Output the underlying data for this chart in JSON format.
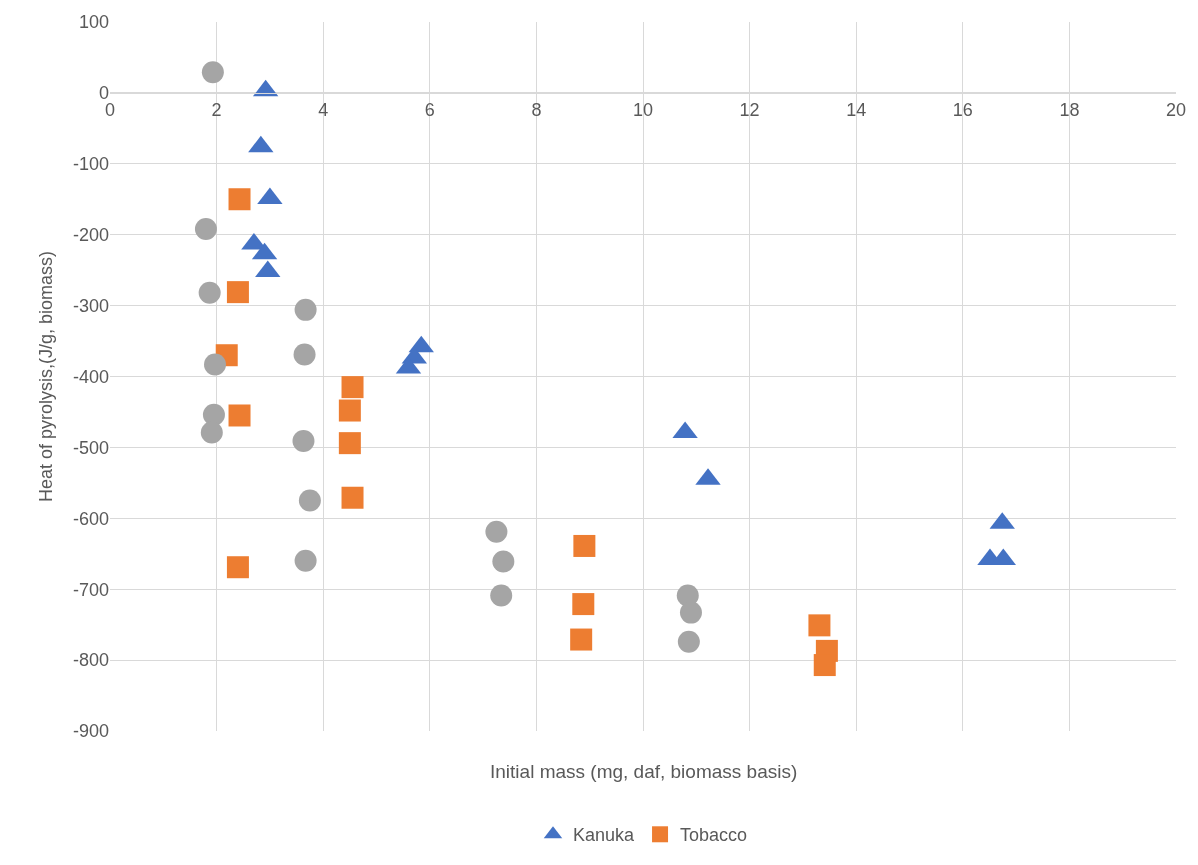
{
  "chart_data": {
    "type": "scatter",
    "xlabel": "Initial mass (mg, daf, biomass basis)",
    "ylabel": "Heat of pyrolysis,(J/g, biomass)",
    "xlim": [
      0,
      20
    ],
    "xticks": [
      0,
      2,
      4,
      6,
      8,
      10,
      12,
      14,
      16,
      18,
      20
    ],
    "ylim": [
      -900,
      100
    ],
    "yticks": [
      -900,
      -800,
      -700,
      -600,
      -500,
      -400,
      -300,
      -200,
      -100,
      0,
      100
    ],
    "grid": true,
    "legend": "bottom",
    "series": [
      {
        "name": "Kanuka",
        "color": "#4472c4",
        "marker": "triangle",
        "x": [
          2.92,
          2.83,
          3.0,
          2.7,
          2.9,
          2.96,
          5.84,
          5.71,
          5.6,
          10.79,
          11.22,
          16.74,
          16.51,
          16.76
        ],
        "values": [
          3,
          -76,
          -149,
          -213,
          -227,
          -252,
          -358,
          -374,
          -388,
          -479,
          -545,
          -607,
          -658,
          -658
        ]
      },
      {
        "name": "Tobacco",
        "color": "#ed7d31",
        "marker": "square",
        "x": [
          2.43,
          2.4,
          2.19,
          2.43,
          4.55,
          4.5,
          4.5,
          4.55,
          2.4,
          8.9,
          8.88,
          8.84,
          13.31,
          13.45,
          13.41
        ],
        "values": [
          -150,
          -281,
          -370,
          -455,
          -415,
          -448,
          -494,
          -571,
          -669,
          -639,
          -721,
          -771,
          -751,
          -787,
          -807
        ]
      },
      {
        "color": "#a5a5a5",
        "marker": "circle",
        "x": [
          1.93,
          1.8,
          1.87,
          1.97,
          1.95,
          1.91,
          3.67,
          3.65,
          3.63,
          3.75,
          3.67,
          7.25,
          7.38,
          7.34,
          10.84,
          10.9,
          10.86
        ],
        "values": [
          29,
          -192,
          -282,
          -383,
          -454,
          -479,
          -306,
          -369,
          -491,
          -575,
          -660,
          -619,
          -661,
          -709,
          -709,
          -733,
          -774
        ]
      }
    ]
  }
}
